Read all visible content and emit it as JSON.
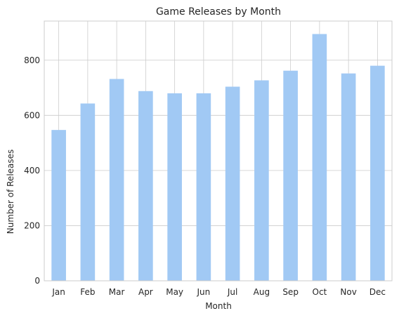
{
  "chart_data": {
    "type": "bar",
    "title": "Game Releases by Month",
    "xlabel": "Month",
    "ylabel": "Number of Releases",
    "categories": [
      "Jan",
      "Feb",
      "Mar",
      "Apr",
      "May",
      "Jun",
      "Jul",
      "Aug",
      "Sep",
      "Oct",
      "Nov",
      "Dec"
    ],
    "values": [
      547,
      643,
      732,
      688,
      680,
      680,
      704,
      727,
      762,
      895,
      752,
      780
    ],
    "ylim": [
      0,
      942
    ],
    "yticks": [
      0,
      200,
      400,
      600,
      800
    ],
    "grid": true,
    "bar_color": "#a1c9f4",
    "grid_color": "#cccccc"
  }
}
